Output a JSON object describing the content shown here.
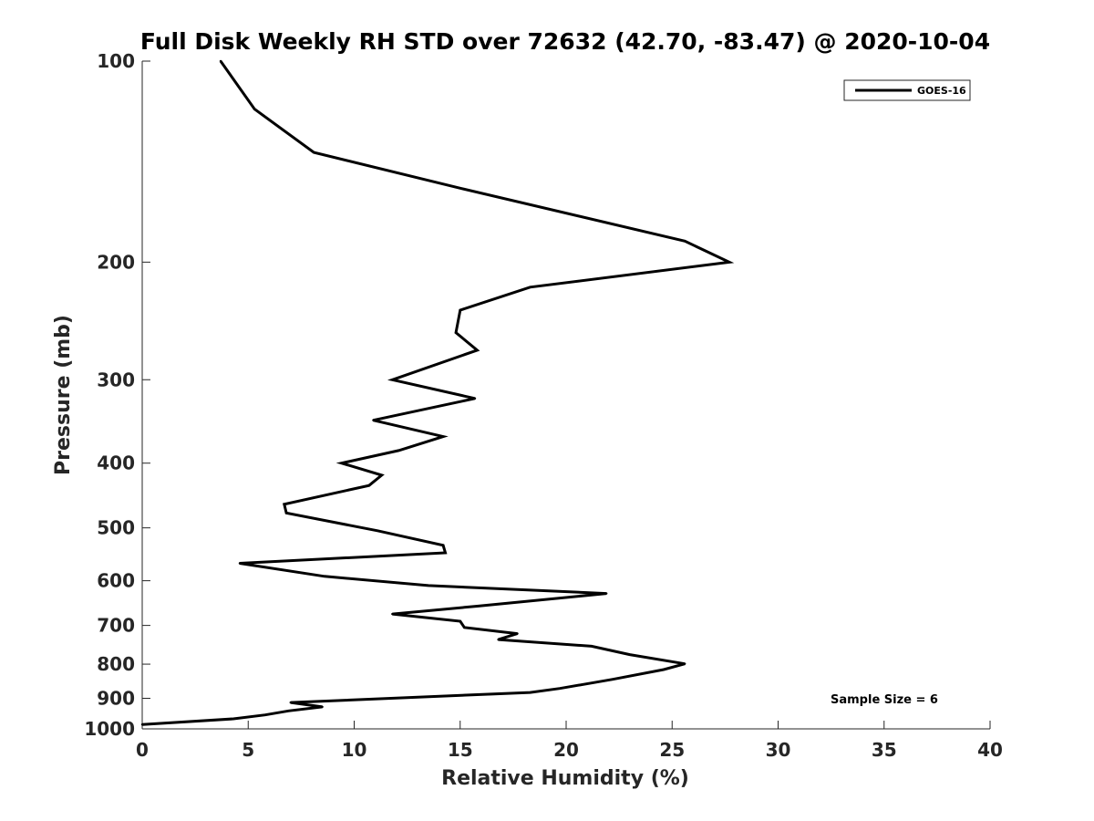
{
  "chart_data": {
    "type": "line",
    "title": "Full Disk Weekly RH STD over 72632 (42.70, -83.47) @ 2020-10-04",
    "xlabel": "Relative Humidity (%)",
    "ylabel": "Pressure (mb)",
    "xlim": [
      0,
      40
    ],
    "ylim": [
      100,
      1000
    ],
    "yscale": "log",
    "yreversed": true,
    "grid": false,
    "x_ticks": [
      "0",
      "5",
      "10",
      "15",
      "20",
      "25",
      "30",
      "35",
      "40"
    ],
    "x_tick_values": [
      0,
      5,
      10,
      15,
      20,
      25,
      30,
      35,
      40
    ],
    "y_ticks": [
      "100",
      "200",
      "300",
      "400",
      "500",
      "600",
      "700",
      "800",
      "900",
      "1000"
    ],
    "y_tick_values": [
      100,
      200,
      300,
      400,
      500,
      600,
      700,
      800,
      900,
      1000
    ],
    "legend": {
      "position": "top-right",
      "entries": [
        "GOES-16"
      ]
    },
    "annotation": "Sample Size = 6",
    "series": [
      {
        "name": "GOES-16",
        "color": "#000000",
        "x": [
          3.7,
          5.3,
          8.1,
          15.0,
          25.6,
          27.7,
          18.3,
          15.0,
          14.8,
          15.8,
          11.8,
          15.7,
          10.9,
          14.2,
          12.1,
          9.4,
          11.3,
          10.7,
          6.7,
          6.8,
          11.1,
          14.2,
          14.3,
          4.6,
          8.6,
          13.5,
          21.9,
          15.8,
          11.8,
          15.0,
          15.2,
          17.7,
          16.8,
          21.2,
          23.0,
          25.6,
          24.6,
          22.2,
          19.7,
          18.3,
          7.0,
          8.5,
          6.9,
          5.8,
          4.3,
          0.0
        ],
        "y": [
          100,
          118,
          137,
          155,
          186,
          200,
          218,
          236,
          255,
          271,
          300,
          320,
          345,
          365,
          383,
          400,
          417,
          432,
          461,
          475,
          505,
          531,
          545,
          565,
          591,
          610,
          627,
          655,
          673,
          690,
          705,
          720,
          735,
          752,
          774,
          799,
          815,
          843,
          870,
          882,
          913,
          927,
          940,
          953,
          966,
          985
        ]
      }
    ]
  }
}
